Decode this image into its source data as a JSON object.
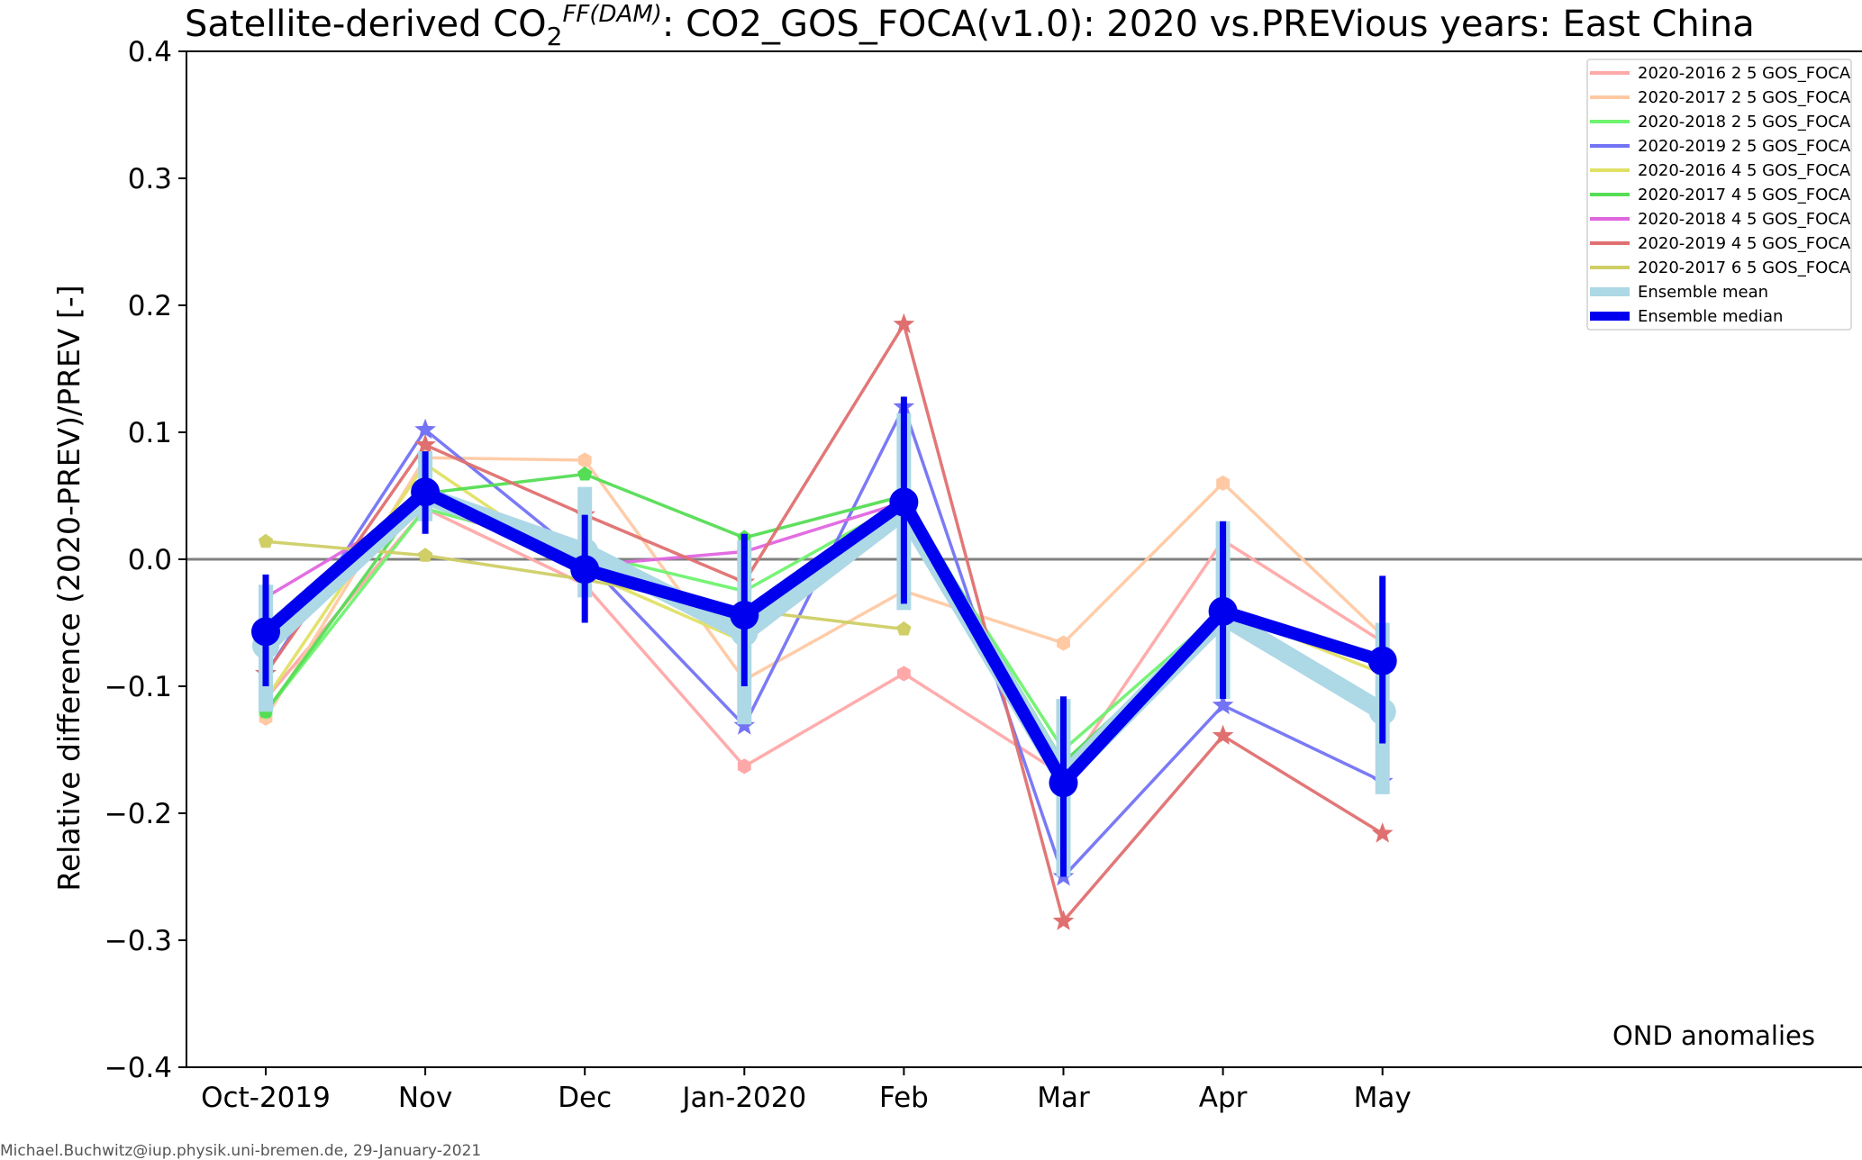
{
  "chart_data": {
    "type": "line",
    "title": {
      "prefix": "Satellite-derived CO",
      "sub": "2",
      "sup": "FF(DAM)",
      "suffix": ": CO2_GOS_FOCA(v1.0): 2020 vs.PREVious years: East China"
    },
    "ylabel": "Relative difference (2020-PREV)/PREV [-]",
    "xlabel": "",
    "categories": [
      "Oct-2019",
      "Nov",
      "Dec",
      "Jan-2020",
      "Feb",
      "Mar",
      "Apr",
      "May"
    ],
    "ylim": [
      -0.4,
      0.4
    ],
    "yticks": [
      0.4,
      0.3,
      0.2,
      0.1,
      0.0,
      -0.1,
      -0.2,
      -0.3,
      -0.4
    ],
    "ytick_labels": [
      "0.4",
      "0.3",
      "0.2",
      "0.1",
      "0.0",
      "−0.1",
      "−0.2",
      "−0.3",
      "−0.4"
    ],
    "zero_line": true,
    "grid": false,
    "legend_position": "top-right",
    "annotation": "OND anomalies",
    "series": [
      {
        "name": "2020-2016 2 5 GOS_FOCA",
        "color": "#ffa8a8",
        "marker": "hexagon",
        "values": [
          -0.11,
          0.04,
          -0.02,
          -0.163,
          -0.09,
          -0.17,
          0.015,
          -0.065
        ]
      },
      {
        "name": "2020-2017 2 5 GOS_FOCA",
        "color": "#ffc9a3",
        "marker": "hexagon",
        "values": [
          -0.125,
          0.08,
          0.078,
          -0.095,
          -0.025,
          -0.066,
          0.06,
          -0.06
        ]
      },
      {
        "name": "2020-2018 2 5 GOS_FOCA",
        "color": "#6ff26f",
        "marker": "hexagon",
        "values": [
          -0.12,
          0.04,
          0.005,
          -0.025,
          0.045,
          -0.15,
          -0.04,
          null
        ]
      },
      {
        "name": "2020-2019 2 5 GOS_FOCA",
        "color": "#7373f5",
        "marker": "star",
        "values": [
          -0.09,
          0.102,
          0.0,
          -0.131,
          0.12,
          -0.25,
          -0.115,
          -0.175
        ]
      },
      {
        "name": "2020-2016 4 5 GOS_FOCA",
        "color": "#e0e065",
        "marker": "pentagon",
        "values": [
          -0.11,
          0.075,
          -0.01,
          -0.065,
          0.05,
          -0.17,
          -0.04,
          -0.09
        ]
      },
      {
        "name": "2020-2017 4 5 GOS_FOCA",
        "color": "#55dd55",
        "marker": "pentagon",
        "values": [
          -0.12,
          0.052,
          0.067,
          0.017,
          0.05,
          -0.16,
          -0.045,
          null
        ]
      },
      {
        "name": "2020-2018 4 5 GOS_FOCA",
        "color": "#e066e0",
        "marker": "pentagon",
        "values": [
          -0.03,
          0.045,
          -0.005,
          0.006,
          0.045,
          -0.17,
          -0.04,
          null
        ]
      },
      {
        "name": "2020-2019 4 5 GOS_FOCA",
        "color": "#e07070",
        "marker": "star",
        "values": [
          -0.09,
          0.09,
          0.035,
          -0.018,
          0.185,
          -0.285,
          -0.139,
          -0.216
        ]
      },
      {
        "name": "2020-2017 6 5 GOS_FOCA",
        "color": "#cfcf66",
        "marker": "pentagon",
        "values": [
          0.014,
          0.003,
          -0.016,
          -0.04,
          -0.055,
          null,
          null,
          null
        ]
      }
    ],
    "ensemble_mean": {
      "name": "Ensemble mean",
      "color": "#add8e6",
      "values": [
        -0.068,
        0.05,
        0.006,
        -0.058,
        0.038,
        -0.172,
        -0.045,
        -0.12
      ],
      "err_low": [
        -0.12,
        0.03,
        -0.03,
        -0.13,
        -0.04,
        -0.25,
        -0.11,
        -0.185
      ],
      "err_high": [
        -0.02,
        0.085,
        0.057,
        0.015,
        0.115,
        -0.11,
        0.03,
        -0.05
      ]
    },
    "ensemble_median": {
      "name": "Ensemble median",
      "color": "#0000ee",
      "values": [
        -0.057,
        0.053,
        -0.008,
        -0.044,
        0.045,
        -0.176,
        -0.041,
        -0.08
      ],
      "err_low": [
        -0.1,
        0.02,
        -0.05,
        -0.1,
        -0.035,
        -0.25,
        -0.11,
        -0.145
      ],
      "err_high": [
        -0.012,
        0.085,
        0.035,
        0.02,
        0.128,
        -0.108,
        0.03,
        -0.013
      ]
    }
  },
  "footer": "Michael.Buchwitz@iup.physik.uni-bremen.de, 29-January-2021"
}
